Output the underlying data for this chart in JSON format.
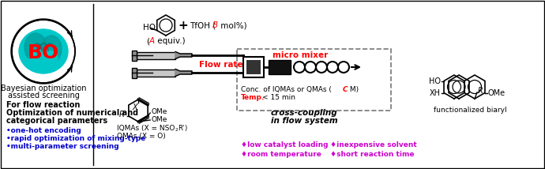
{
  "bg_color": "#ffffff",
  "figsize": [
    6.9,
    2.14
  ],
  "dpi": 100,
  "left_panel": {
    "bo_text": "BO",
    "bo_color": "#ff0000",
    "bo_fontsize": 18,
    "brain_color": "#00c8c8",
    "title1": "Bayesian optimization",
    "title2": "assisted screening",
    "bold_text1": "For flow reaction",
    "bold_text2": "Optimization of numerical and",
    "bold_text3": "categorical parameters",
    "bullets": [
      "•one-hot encoding",
      "•rapid optimization of mixing-type",
      "•multi-parameter screening"
    ],
    "bullet_color": "#0000cc",
    "bullet_fontsize": 6.5
  },
  "center_panel": {
    "flow_rate_color": "#ff0000",
    "micro_mixer_color": "#ff0000",
    "conc_C_color": "#ff0000",
    "temp_color": "#ff0000",
    "bullet2": [
      "♦low catalyst loading",
      "♦room temperature",
      "♦inexpensive solvent",
      "♦short reaction time"
    ],
    "bullet2_color": "#cc00cc"
  }
}
